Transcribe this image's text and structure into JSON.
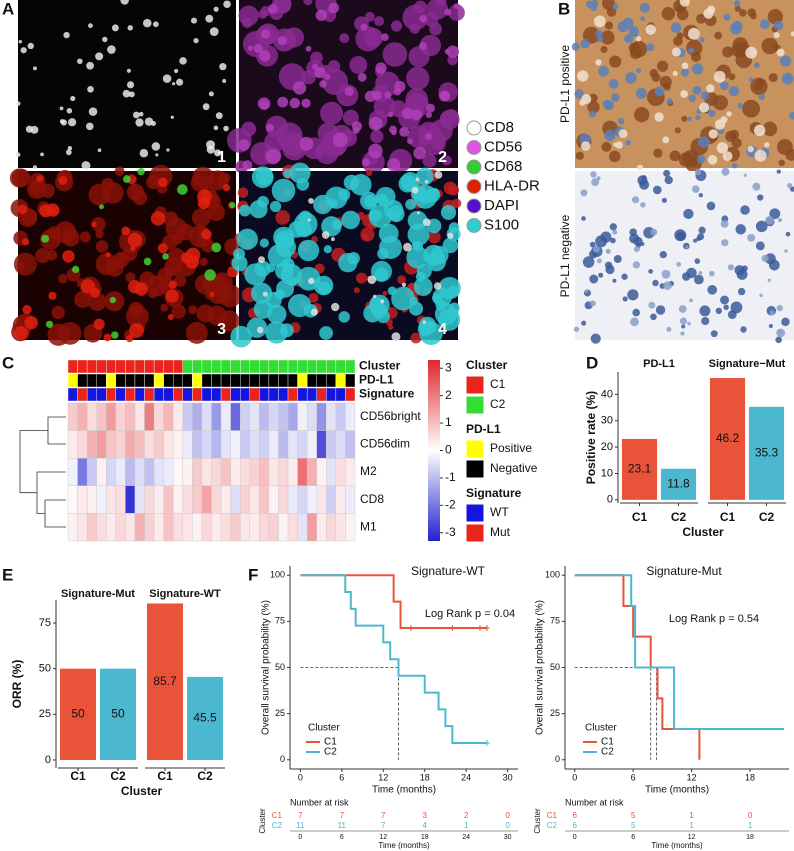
{
  "figure_A": {
    "panel": "A",
    "tile_labels": [
      "1",
      "2",
      "3",
      "4"
    ],
    "legend": [
      "CD8",
      "CD56",
      "CD68",
      "HLA-DR",
      "DAPI",
      "S100"
    ],
    "legend_colors": [
      "#ffffff",
      "#e055e0",
      "#33cc33",
      "#dd2200",
      "#5511cc",
      "#33cccc"
    ]
  },
  "figure_B": {
    "panel": "B",
    "rows": [
      "PD-L1 positive",
      "PD-L1 negative"
    ]
  },
  "chart_data": [
    {
      "type": "heatmap",
      "panel": "C",
      "annotations": [
        {
          "name": "Cluster",
          "values": [
            "C1",
            "C1",
            "C1",
            "C1",
            "C1",
            "C1",
            "C1",
            "C1",
            "C1",
            "C1",
            "C1",
            "C1",
            "C2",
            "C2",
            "C2",
            "C2",
            "C2",
            "C2",
            "C2",
            "C2",
            "C2",
            "C2",
            "C2",
            "C2",
            "C2",
            "C2",
            "C2",
            "C2",
            "C2",
            "C2"
          ]
        },
        {
          "name": "PD-L1",
          "values": [
            "Positive",
            "Negative",
            "Negative",
            "Negative",
            "Positive",
            "Negative",
            "Negative",
            "Negative",
            "Negative",
            "Positive",
            "Negative",
            "Negative",
            "Negative",
            "Positive",
            "Negative",
            "Negative",
            "Negative",
            "Negative",
            "Negative",
            "Negative",
            "Negative",
            "Negative",
            "Negative",
            "Negative",
            "Positive",
            "Negative",
            "Negative",
            "Negative",
            "Positive",
            "Negative"
          ]
        },
        {
          "name": "Signature",
          "values": [
            "WT",
            "Mut",
            "WT",
            "WT",
            "Mut",
            "WT",
            "Mut",
            "WT",
            "Mut",
            "WT",
            "WT",
            "Mut",
            "WT",
            "Mut",
            "WT",
            "WT",
            "Mut",
            "WT",
            "WT",
            "Mut",
            "WT",
            "WT",
            "WT",
            "Mut",
            "WT",
            "WT",
            "Mut",
            "WT",
            "WT",
            "Mut"
          ]
        }
      ],
      "rows": [
        {
          "name": "CD56bright",
          "values": [
            0.8,
            1.2,
            0.5,
            0.9,
            1.5,
            0.7,
            1.0,
            0.4,
            2.0,
            0.6,
            1.1,
            0.3,
            -0.8,
            -1.2,
            -0.5,
            -1.5,
            -0.3,
            -2.2,
            -0.7,
            -0.4,
            -1.0,
            -0.6,
            -0.9,
            -1.3,
            -0.2,
            -0.5,
            -1.6,
            -0.4,
            -0.8,
            -0.3
          ]
        },
        {
          "name": "CD56dim",
          "values": [
            0.3,
            0.6,
            1.2,
            1.5,
            0.9,
            0.7,
            1.3,
            1.0,
            0.5,
            0.8,
            0.4,
            0.2,
            -0.3,
            -0.9,
            -0.6,
            -1.1,
            -0.4,
            -0.2,
            -0.8,
            -0.5,
            -0.7,
            -0.3,
            -1.0,
            -0.4,
            -0.6,
            -0.2,
            -2.6,
            -0.8,
            -0.5,
            -0.9
          ]
        },
        {
          "name": "M2",
          "values": [
            -0.2,
            -2.0,
            -0.8,
            0.2,
            -0.6,
            -0.3,
            -1.0,
            -0.5,
            -0.9,
            -0.4,
            -0.3,
            0.1,
            0.2,
            0.8,
            0.4,
            0.6,
            0.9,
            0.3,
            0.5,
            0.7,
            1.0,
            0.4,
            0.6,
            0.3,
            2.2,
            1.2,
            0.2,
            -0.4,
            0.5,
            0.3
          ]
        },
        {
          "name": "CD8",
          "values": [
            0.1,
            0.3,
            0.2,
            -0.2,
            0.4,
            0.5,
            -3.0,
            -0.4,
            0.6,
            0.3,
            0.9,
            0.2,
            0.5,
            0.8,
            1.4,
            0.6,
            0.3,
            -0.5,
            0.7,
            0.4,
            0.9,
            0.2,
            0.6,
            -0.3,
            -0.6,
            -0.2,
            0.4,
            -0.7,
            0.3,
            -0.3
          ]
        },
        {
          "name": "M1",
          "values": [
            0.2,
            0.4,
            0.8,
            0.5,
            0.3,
            0.6,
            0.4,
            1.2,
            0.7,
            0.3,
            0.9,
            0.5,
            0.4,
            0.2,
            0.6,
            0.3,
            0.5,
            0.8,
            0.4,
            0.3,
            0.6,
            0.7,
            0.2,
            0.5,
            -0.4,
            1.5,
            0.3,
            0.6,
            0.4,
            0.2
          ]
        }
      ],
      "clim": [
        -3.3,
        3.3
      ],
      "cticks": [
        3,
        2,
        1,
        0,
        -1,
        -2,
        -3
      ],
      "legends": [
        {
          "title": "Cluster",
          "levels": [
            "C1",
            "C2"
          ],
          "colors": [
            "#e8241c",
            "#33dd33"
          ]
        },
        {
          "title": "PD-L1",
          "levels": [
            "Positive",
            "Negative"
          ],
          "colors": [
            "#ffff00",
            "#000000"
          ]
        },
        {
          "title": "Signature",
          "levels": [
            "WT",
            "Mut"
          ],
          "colors": [
            "#1515e0",
            "#e8241c"
          ]
        }
      ]
    },
    {
      "type": "bar_facets",
      "panel": "D",
      "ylabel": "Positive rate (%)",
      "xlabel": "Cluster",
      "categories": [
        "C1",
        "C2"
      ],
      "colors": [
        "#e8533a",
        "#4bb8d0"
      ],
      "facets": [
        {
          "title": "PD-L1",
          "values": [
            23.1,
            11.8
          ]
        },
        {
          "title": "Signature−Mut",
          "values": [
            46.2,
            35.3
          ]
        }
      ],
      "ylim": [
        -1.2,
        48.5
      ],
      "yticks": [
        0,
        10,
        20,
        30,
        40
      ]
    },
    {
      "type": "bar_facets",
      "panel": "E",
      "ylabel": "ORR (%)",
      "xlabel": "Cluster",
      "categories": [
        "C1",
        "C2"
      ],
      "colors": [
        "#e8533a",
        "#4bb8d0"
      ],
      "facets": [
        {
          "title": "Signature-Mut",
          "values": [
            50,
            50
          ]
        },
        {
          "title": "Signature-WT",
          "values": [
            85.7,
            45.5
          ]
        }
      ],
      "ylim": [
        -4.4,
        87.6
      ],
      "yticks": [
        0,
        25,
        50,
        75
      ]
    },
    {
      "type": "km",
      "panel": "F",
      "title": "Signature-WT",
      "annotation": "Log Rank p = 0.04",
      "xlabel": "Time (months)",
      "ylabel": "Overall survival probability (%)",
      "xlim": [
        -1.5,
        31.5
      ],
      "xticks": [
        0,
        6,
        12,
        18,
        24,
        30
      ],
      "ylim": [
        -5,
        105
      ],
      "yticks": [
        0,
        25,
        50,
        75,
        100
      ],
      "legend_title": "Cluster",
      "series": [
        {
          "name": "C1",
          "color": "#e8533a",
          "x": [
            0,
            13.5,
            13.5,
            14.5,
            14.5,
            27
          ],
          "values": [
            100,
            100,
            85.7,
            85.7,
            71.4,
            71.4
          ],
          "censor_x": [
            16,
            22,
            26,
            27
          ],
          "censor_values": [
            71.4,
            71.4,
            71.4,
            71.4
          ]
        },
        {
          "name": "C2",
          "color": "#4bb8d0",
          "x": [
            0,
            6.5,
            6.5,
            7.3,
            7.3,
            8,
            8,
            12,
            12,
            13,
            13,
            14.2,
            14.2,
            18,
            18,
            20,
            20,
            21,
            21,
            22,
            22,
            27
          ],
          "values": [
            100,
            100,
            90.9,
            90.9,
            81.8,
            81.8,
            72.7,
            72.7,
            63.6,
            63.6,
            54.5,
            54.5,
            45.5,
            45.5,
            36.4,
            36.4,
            27.3,
            27.3,
            18.2,
            18.2,
            9.1,
            9.1
          ],
          "censor_x": [
            27
          ],
          "censor_values": [
            9.1
          ]
        }
      ],
      "median_y": 50,
      "median_x": [
        14.2
      ],
      "risk_table": {
        "title": "Number at risk",
        "row_title": "Cluster",
        "times": [
          0,
          6,
          12,
          18,
          24,
          30
        ],
        "counts": [
          [
            7,
            7,
            7,
            3,
            2,
            0
          ],
          [
            11,
            11,
            7,
            4,
            1,
            0
          ]
        ],
        "xlabel": "Time (months)"
      }
    },
    {
      "type": "km",
      "title": "Signature-Mut",
      "annotation": "Log Rank p = 0.54",
      "xlabel": "Time (months)",
      "ylabel": "Overall survival probability (%)",
      "xlim": [
        -1,
        22
      ],
      "xticks": [
        0,
        6,
        12,
        18
      ],
      "ylim": [
        -5,
        105
      ],
      "yticks": [
        0,
        25,
        50,
        75,
        100
      ],
      "legend_title": "Cluster",
      "series": [
        {
          "name": "C1",
          "color": "#e8533a",
          "x": [
            0,
            5,
            5,
            6,
            6,
            7.8,
            7.8,
            8.5,
            8.5,
            9,
            9,
            12.8,
            12.8
          ],
          "values": [
            100,
            100,
            83.3,
            83.3,
            66.7,
            66.7,
            50,
            50,
            33.3,
            33.3,
            16.7,
            16.7,
            0
          ],
          "censor_x": [],
          "censor_values": []
        },
        {
          "name": "C2",
          "color": "#4bb8d0",
          "x": [
            0,
            5.8,
            5.8,
            6.2,
            6.2,
            10.2,
            10.2,
            21.5
          ],
          "values": [
            100,
            100,
            83.3,
            83.3,
            50,
            50,
            16.7,
            16.7
          ],
          "censor_x": [],
          "censor_values": []
        }
      ],
      "median_y": 50,
      "median_x": [
        7.8,
        8.4
      ],
      "risk_table": {
        "title": "Number at risk",
        "row_title": "Cluster",
        "times": [
          0,
          6,
          12,
          18
        ],
        "counts": [
          [
            6,
            5,
            1,
            0
          ],
          [
            6,
            5,
            1,
            1
          ]
        ],
        "xlabel": "Time (months)"
      }
    }
  ]
}
